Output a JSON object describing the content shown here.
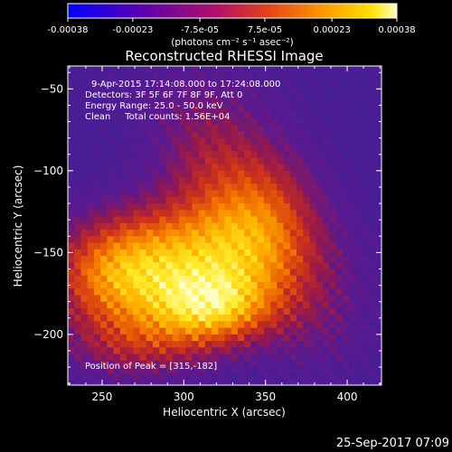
{
  "colorbar": {
    "ticks": [
      "-0.00038",
      "-0.00023",
      "-7.5e-05",
      "7.5e-05",
      "0.00023",
      "0.00038"
    ],
    "tick_values": [
      -0.00038,
      -0.00023,
      -7.5e-05,
      7.5e-05,
      0.00023,
      0.00038
    ],
    "units": "(photons cm⁻² s⁻¹ asec⁻²)",
    "colors": [
      "#1a1aff",
      "#6a00a8",
      "#c01a1a",
      "#ff7a00",
      "#ffd400",
      "#ffffb0"
    ]
  },
  "chart_data": {
    "type": "heatmap",
    "title": "Reconstructed RHESSI Image",
    "xlabel": "Heliocentric X (arcsec)",
    "ylabel": "Heliocentric Y (arcsec)",
    "xlim": [
      229,
      421
    ],
    "ylim": [
      -231,
      -36
    ],
    "xticks": [
      250,
      300,
      350,
      400
    ],
    "yticks": [
      -50,
      -100,
      -150,
      -200
    ],
    "xtick_labels": [
      "250",
      "300",
      "350",
      "400"
    ],
    "ytick_labels": [
      "−50",
      "−100",
      "−150",
      "−200"
    ],
    "annotations": [
      "9-Apr-2015 17:14:08.000 to 17:24:08.000",
      "Detectors: 3F 5F 6F 7F 8F 9F, Att 0",
      "Energy Range: 25.0 - 50.0 keV",
      "Clean     Total counts: 1.56E+04"
    ],
    "peak_label": "Position of Peak = [315,-182]",
    "peak": [
      315,
      -182
    ],
    "timestamp": "25-Sep-2017 07:09"
  }
}
